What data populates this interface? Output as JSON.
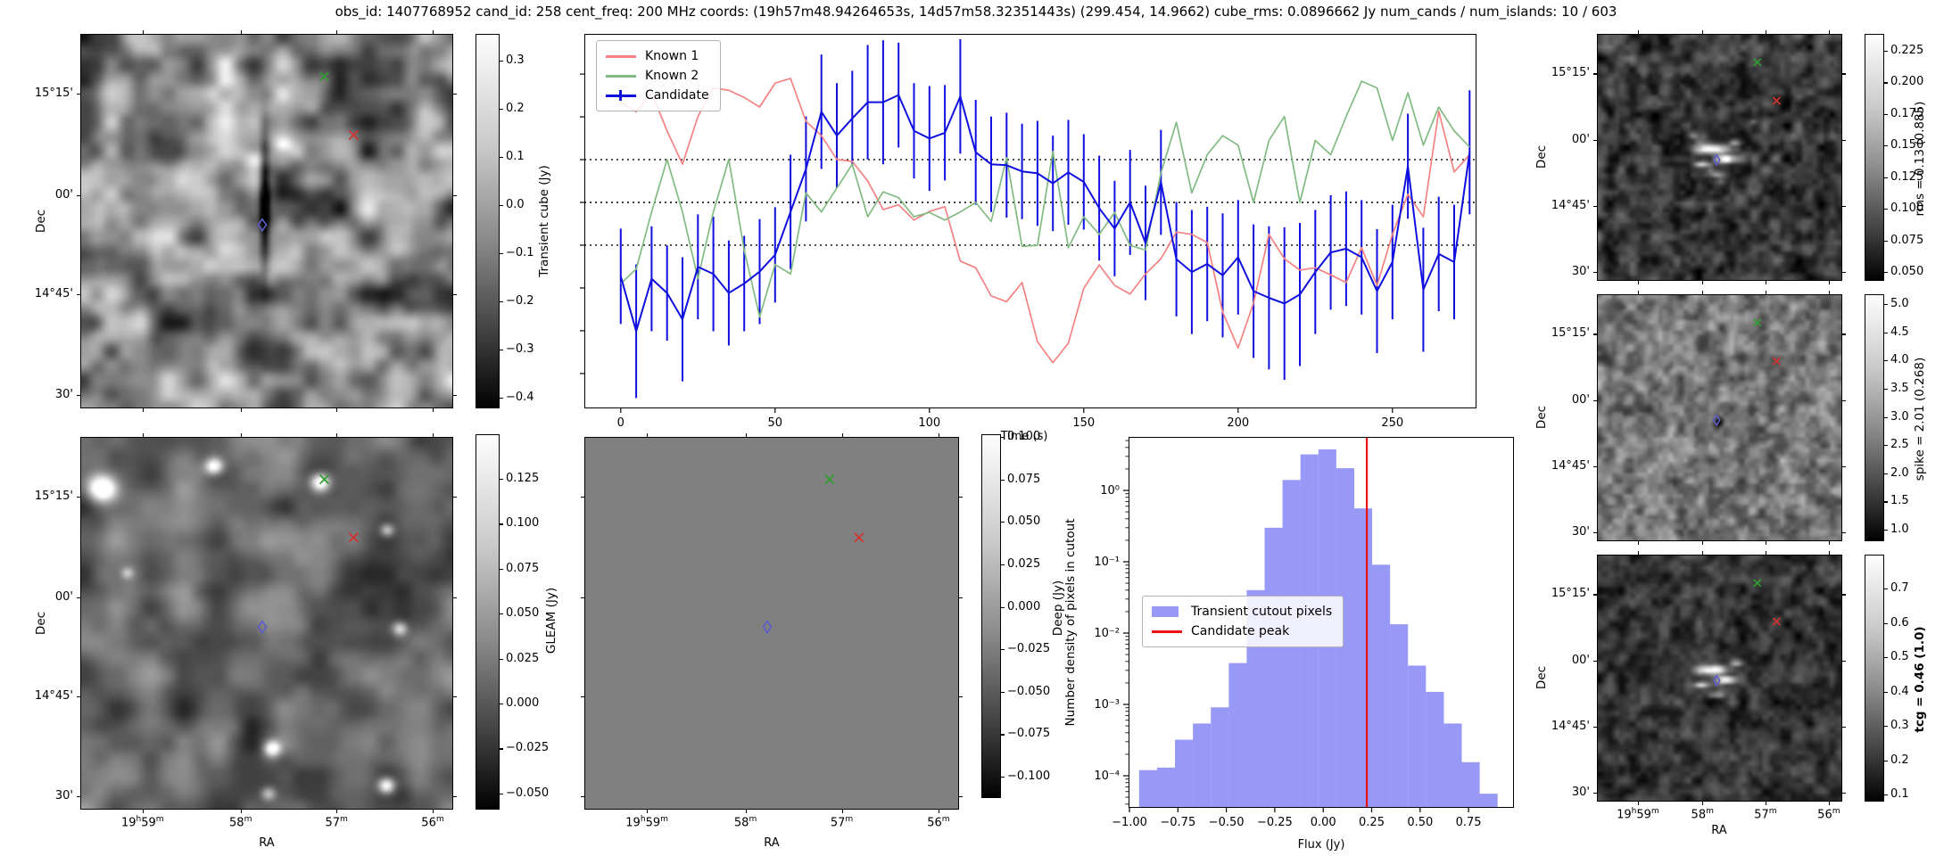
{
  "title": "obs_id: 1407768952 cand_id: 258 cent_freq: 200 MHz coords: (19h57m48.94264653s, 14d57m58.32351443s) (299.454, 14.9662) cube_rms: 0.0896662 Jy num_cands / num_islands: 10 / 603",
  "axes": {
    "dec_label": "Dec",
    "ra_label": "RA",
    "dec_ticks": [
      "15°15'",
      "00'",
      "14°45'",
      "30'"
    ],
    "ra_ticks": [
      "19h59m",
      "58m",
      "57m",
      "56m"
    ]
  },
  "cutout_markers": [
    {
      "label": "known-source-1",
      "shape": "x",
      "color": "#d43030",
      "fx": 0.734,
      "fy": 0.269
    },
    {
      "label": "known-source-2",
      "shape": "x",
      "color": "#2f9e2f",
      "fx": 0.655,
      "fy": 0.112
    },
    {
      "label": "candidate",
      "shape": "diamond",
      "color": "#5c5ccc",
      "fx": 0.488,
      "fy": 0.51
    }
  ],
  "colorbars": {
    "transient": {
      "label": "Transient cube (Jy)",
      "ticks": [
        "0.3",
        "0.2",
        "0.1",
        "0.0",
        "−0.1",
        "−0.2",
        "−0.3",
        "−0.4"
      ]
    },
    "gleam": {
      "label": "GLEAM (Jy)",
      "ticks": [
        "0.125",
        "0.100",
        "0.075",
        "0.050",
        "0.025",
        "0.000",
        "−0.025",
        "−0.050"
      ]
    },
    "deep": {
      "label": "Deep (Jy)",
      "ticks": [
        "0.100",
        "0.075",
        "0.050",
        "0.025",
        "0.000",
        "−0.025",
        "−0.050",
        "−0.075",
        "−0.100"
      ]
    },
    "rms": {
      "label": "rms = 0.13 (0.885)",
      "ticks": [
        "0.225",
        "0.200",
        "0.175",
        "0.150",
        "0.125",
        "0.100",
        "0.075",
        "0.050"
      ]
    },
    "spike": {
      "label": "spike = 2.01 (0.268)",
      "ticks": [
        "5.0",
        "4.5",
        "4.0",
        "3.5",
        "3.0",
        "2.5",
        "2.0",
        "1.5",
        "1.0"
      ]
    },
    "tcg": {
      "label": "tcg = 0.46 (1.0)",
      "bold": true,
      "ticks": [
        "0.7",
        "0.6",
        "0.5",
        "0.4",
        "0.3",
        "0.2",
        "0.1"
      ]
    }
  },
  "chart_data": [
    {
      "id": "lightcurve",
      "type": "line",
      "xlabel": "Time (s)",
      "ylabel": "",
      "xlim": [
        -12,
        277
      ],
      "ylim": [
        -0.432,
        0.353
      ],
      "x_ticks": [
        0,
        50,
        100,
        150,
        200,
        250
      ],
      "dotted_hlines": [
        0.0896662,
        0.0,
        -0.0896662
      ],
      "legend_position": "upper left",
      "x": [
        0,
        5,
        10,
        15,
        20,
        25,
        30,
        35,
        40,
        45,
        50,
        55,
        60,
        65,
        70,
        75,
        80,
        85,
        90,
        95,
        100,
        105,
        110,
        115,
        120,
        125,
        130,
        135,
        140,
        145,
        150,
        155,
        160,
        165,
        170,
        175,
        180,
        185,
        190,
        195,
        200,
        205,
        210,
        215,
        220,
        225,
        230,
        235,
        240,
        245,
        250,
        255,
        260,
        265,
        270,
        275
      ],
      "series": [
        {
          "name": "Known 1",
          "color": "#f58282",
          "values": [
            0.21,
            0.19,
            0.23,
            0.15,
            0.08,
            0.18,
            0.24,
            0.235,
            0.22,
            0.2,
            0.25,
            0.26,
            0.17,
            0.14,
            0.09,
            0.086,
            0.045,
            -0.015,
            -0.005,
            -0.037,
            -0.019,
            -0.009,
            -0.123,
            -0.137,
            -0.196,
            -0.208,
            -0.168,
            -0.292,
            -0.336,
            -0.295,
            -0.18,
            -0.131,
            -0.174,
            -0.192,
            -0.15,
            -0.118,
            -0.062,
            -0.067,
            -0.084,
            -0.23,
            -0.305,
            -0.211,
            -0.067,
            -0.118,
            -0.142,
            -0.137,
            -0.152,
            -0.168,
            -0.095,
            -0.174,
            -0.067,
            0.017,
            -0.03,
            0.191,
            0.064,
            0.1
          ]
        },
        {
          "name": "Known 2",
          "color": "#82bb82",
          "values": [
            -0.17,
            -0.14,
            -0.02,
            0.09,
            -0.02,
            -0.16,
            -0.02,
            0.09,
            -0.1,
            -0.24,
            -0.13,
            -0.15,
            0.02,
            -0.02,
            0.03,
            0.08,
            -0.03,
            0.022,
            0.01,
            -0.03,
            -0.021,
            -0.037,
            -0.02,
            0.0,
            -0.04,
            0.094,
            -0.092,
            -0.09,
            0.107,
            -0.095,
            -0.03,
            -0.067,
            -0.021,
            -0.09,
            -0.1,
            0.062,
            0.168,
            0.02,
            0.1,
            0.14,
            0.12,
            0.0,
            0.13,
            0.18,
            0.0,
            0.13,
            0.1,
            0.18,
            0.254,
            0.24,
            0.13,
            0.23,
            0.12,
            0.2,
            0.15,
            0.116
          ]
        },
        {
          "name": "Candidate",
          "color": "#0f0fe0",
          "values": [
            -0.155,
            -0.27,
            -0.16,
            -0.19,
            -0.245,
            -0.135,
            -0.15,
            -0.19,
            -0.17,
            -0.145,
            -0.11,
            -0.02,
            0.07,
            0.19,
            0.14,
            0.176,
            0.21,
            0.21,
            0.225,
            0.15,
            0.134,
            0.146,
            0.222,
            0.105,
            0.08,
            0.078,
            0.065,
            0.061,
            0.04,
            0.063,
            0.043,
            -0.012,
            -0.055,
            0.0,
            -0.085,
            0.042,
            -0.119,
            -0.146,
            -0.129,
            -0.153,
            -0.115,
            -0.186,
            -0.2,
            -0.212,
            -0.193,
            -0.146,
            -0.105,
            -0.097,
            -0.115,
            -0.186,
            -0.125,
            0.076,
            -0.183,
            -0.108,
            -0.125,
            0.105
          ],
          "errors": [
            0.1,
            0.14,
            0.11,
            0.1,
            0.13,
            0.11,
            0.12,
            0.11,
            0.1,
            0.11,
            0.1,
            0.12,
            0.11,
            0.12,
            0.11,
            0.1,
            0.12,
            0.13,
            0.11,
            0.1,
            0.11,
            0.1,
            0.12,
            0.11,
            0.1,
            0.11,
            0.1,
            0.11,
            0.1,
            0.11,
            0.1,
            0.11,
            0.1,
            0.11,
            0.12,
            0.11,
            0.12,
            0.13,
            0.12,
            0.13,
            0.12,
            0.14,
            0.15,
            0.16,
            0.15,
            0.13,
            0.12,
            0.12,
            0.12,
            0.13,
            0.12,
            0.11,
            0.13,
            0.12,
            0.12,
            0.13
          ]
        }
      ]
    },
    {
      "id": "histogram",
      "type": "histogram",
      "xlabel": "Flux (Jy)",
      "ylabel": "Number density of pixels in cutout",
      "yscale": "log",
      "xlim": [
        -1.0,
        0.985
      ],
      "x_ticks": [
        -1.0,
        -0.75,
        -0.5,
        -0.25,
        0.0,
        0.25,
        0.5,
        0.75
      ],
      "y_tick_labels": [
        "10⁰",
        "10⁻¹",
        "10⁻²",
        "10⁻³",
        "10⁻⁴"
      ],
      "bar_color": "rgba(88,88,240,0.62)",
      "vline_color": "#ee1111",
      "bin_edges": [
        -0.95,
        -0.8575,
        -0.765,
        -0.6725,
        -0.58,
        -0.4875,
        -0.395,
        -0.3025,
        -0.21,
        -0.1175,
        -0.025,
        0.0675,
        0.16,
        0.2525,
        0.345,
        0.4375,
        0.53,
        0.6225,
        0.715,
        0.8075,
        0.9
      ],
      "densities": [
        0.00012,
        0.00013,
        0.00032,
        0.00054,
        0.00091,
        0.0038,
        0.04,
        0.3,
        1.4,
        3.2,
        3.76,
        2.05,
        0.56,
        0.091,
        0.0133,
        0.0035,
        0.0015,
        0.00054,
        0.000155,
        5.6e-05
      ],
      "candidate_peak": 0.225,
      "legend": [
        {
          "label": "Transient cutout pixels",
          "type": "patch"
        },
        {
          "label": "Candidate peak",
          "type": "line"
        }
      ]
    }
  ]
}
